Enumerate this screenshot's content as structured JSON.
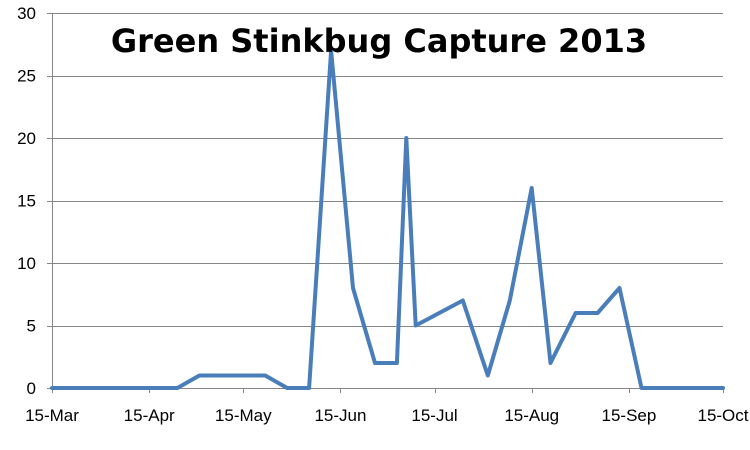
{
  "chart_data": {
    "type": "line",
    "title": "Green Stinkbug Capture 2013",
    "xlabel": "",
    "ylabel": "",
    "ylim": [
      0,
      30
    ],
    "yticks": [
      0,
      5,
      10,
      15,
      20,
      25,
      30
    ],
    "xlim": [
      "2013-03-15",
      "2013-10-15"
    ],
    "xticks": [
      {
        "date": "2013-03-15",
        "label": "15-Mar"
      },
      {
        "date": "2013-04-15",
        "label": "15-Apr"
      },
      {
        "date": "2013-05-15",
        "label": "15-May"
      },
      {
        "date": "2013-06-15",
        "label": "15-Jun"
      },
      {
        "date": "2013-07-15",
        "label": "15-Jul"
      },
      {
        "date": "2013-08-15",
        "label": "15-Aug"
      },
      {
        "date": "2013-09-15",
        "label": "15-Sep"
      },
      {
        "date": "2013-10-15",
        "label": "15-Oct"
      }
    ],
    "grid": "horizontal",
    "legend": "none",
    "line_color": "#4A7EBB",
    "grid_color": "#868686",
    "series": [
      {
        "x": [
          "2013-03-15",
          "2013-04-24",
          "2013-05-01",
          "2013-05-08",
          "2013-05-15",
          "2013-05-22",
          "2013-05-29",
          "2013-06-05",
          "2013-06-12",
          "2013-06-19",
          "2013-06-26",
          "2013-07-03",
          "2013-07-06",
          "2013-07-09",
          "2013-07-24",
          "2013-08-01",
          "2013-08-08",
          "2013-08-15",
          "2013-08-21",
          "2013-08-29",
          "2013-09-05",
          "2013-09-12",
          "2013-09-19",
          "2013-10-15"
        ],
        "values": [
          0,
          0,
          1,
          1,
          1,
          1,
          0,
          0,
          27,
          8,
          2,
          2,
          20,
          5,
          7,
          1,
          7,
          16,
          2,
          6,
          6,
          8,
          0,
          0
        ]
      }
    ]
  }
}
